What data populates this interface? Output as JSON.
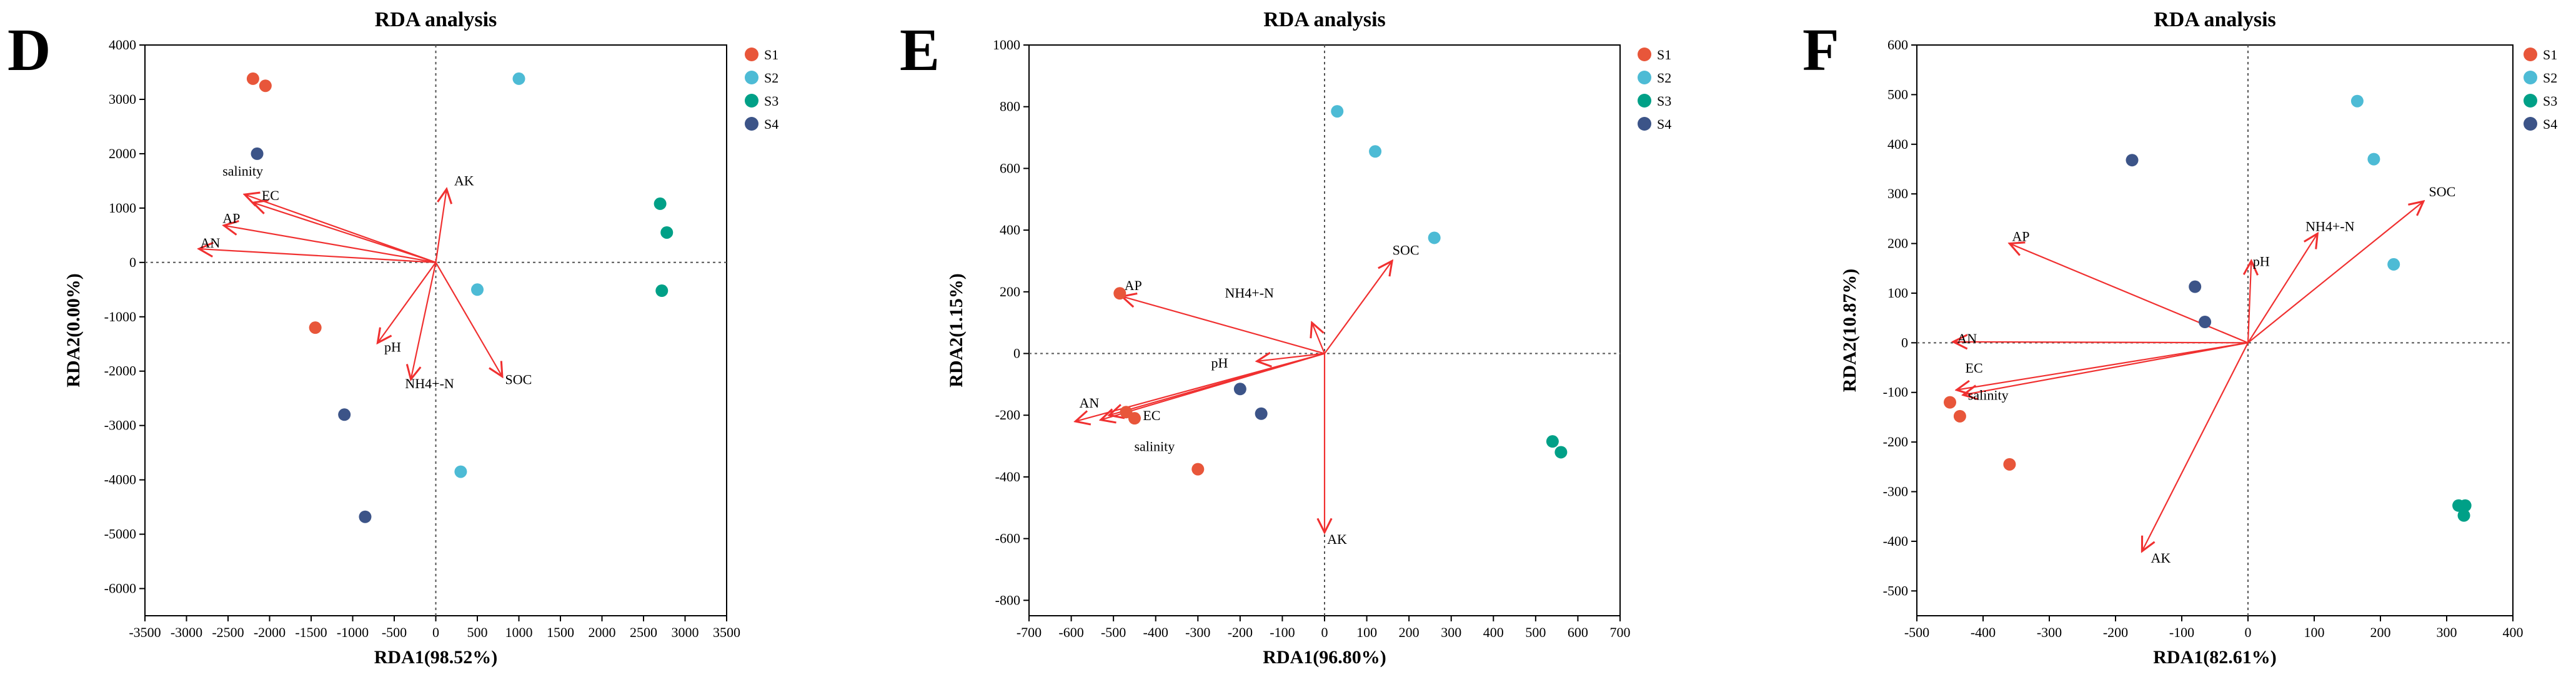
{
  "chart_data": [
    {
      "type": "scatter",
      "panel": "D",
      "title": "RDA analysis",
      "xlabel": "RDA1(98.52%)",
      "ylabel": "RDA2(0.00%)",
      "xlim": [
        -3500,
        3500
      ],
      "ylim": [
        -6500,
        4000
      ],
      "xticks": [
        -3500,
        -3000,
        -2500,
        -2000,
        -1500,
        -1000,
        -500,
        0,
        500,
        1000,
        1500,
        2000,
        2500,
        3000,
        3500
      ],
      "yticks": [
        -6000,
        -5000,
        -4000,
        -3000,
        -2000,
        -1000,
        0,
        1000,
        2000,
        3000,
        4000
      ],
      "legend": [
        "S1",
        "S2",
        "S3",
        "S4"
      ],
      "series": [
        {
          "name": "S1",
          "color": "#E8563A",
          "points": [
            [
              -2200,
              3380
            ],
            [
              -2050,
              3250
            ],
            [
              -1450,
              -1200
            ]
          ]
        },
        {
          "name": "S2",
          "color": "#4DBBD5",
          "points": [
            [
              1000,
              3380
            ],
            [
              500,
              -500
            ],
            [
              300,
              -3850
            ]
          ]
        },
        {
          "name": "S3",
          "color": "#00A087",
          "points": [
            [
              2700,
              1080
            ],
            [
              2780,
              550
            ],
            [
              2720,
              -520
            ]
          ]
        },
        {
          "name": "S4",
          "color": "#3C5488",
          "points": [
            [
              -2150,
              2000
            ],
            [
              -1100,
              -2800
            ],
            [
              -850,
              -4680
            ]
          ]
        }
      ],
      "arrows": [
        {
          "label": "salinity",
          "x": -2300,
          "y": 1250
        },
        {
          "label": "EC",
          "x": -2200,
          "y": 1100
        },
        {
          "label": "AP",
          "x": -2550,
          "y": 680
        },
        {
          "label": "AN",
          "x": -2850,
          "y": 250
        },
        {
          "label": "AK",
          "x": 130,
          "y": 1350
        },
        {
          "label": "pH",
          "x": -700,
          "y": -1480
        },
        {
          "label": "NH4+-N",
          "x": -300,
          "y": -2150
        },
        {
          "label": "SOC",
          "x": 800,
          "y": -2100
        }
      ]
    },
    {
      "type": "scatter",
      "panel": "E",
      "title": "RDA analysis",
      "xlabel": "RDA1(96.80%)",
      "ylabel": "RDA2(1.15%)",
      "xlim": [
        -700,
        700
      ],
      "ylim": [
        -850,
        1000
      ],
      "xticks": [
        -700,
        -600,
        -500,
        -400,
        -300,
        -200,
        -100,
        0,
        100,
        200,
        300,
        400,
        500,
        600,
        700
      ],
      "yticks": [
        -800,
        -600,
        -400,
        -200,
        0,
        200,
        400,
        600,
        800,
        1000
      ],
      "legend": [
        "S1",
        "S2",
        "S3",
        "S4"
      ],
      "series": [
        {
          "name": "S1",
          "color": "#E8563A",
          "points": [
            [
              -485,
              195
            ],
            [
              -470,
              -190
            ],
            [
              -450,
              -210
            ],
            [
              -300,
              -375
            ]
          ]
        },
        {
          "name": "S2",
          "color": "#4DBBD5",
          "points": [
            [
              30,
              785
            ],
            [
              120,
              655
            ],
            [
              260,
              375
            ]
          ]
        },
        {
          "name": "S3",
          "color": "#00A087",
          "points": [
            [
              540,
              -285
            ],
            [
              560,
              -320
            ]
          ]
        },
        {
          "name": "S4",
          "color": "#3C5488",
          "points": [
            [
              -200,
              -115
            ],
            [
              -150,
              -195
            ]
          ]
        }
      ],
      "arrows": [
        {
          "label": "AP",
          "x": -480,
          "y": 185
        },
        {
          "label": "NH4+-N",
          "x": -30,
          "y": 100
        },
        {
          "label": "pH",
          "x": -160,
          "y": -25
        },
        {
          "label": "AN",
          "x": -590,
          "y": -220
        },
        {
          "label": "EC",
          "x": -510,
          "y": -200
        },
        {
          "label": "salinity",
          "x": -530,
          "y": -215
        },
        {
          "label": "SOC",
          "x": 160,
          "y": 300
        },
        {
          "label": "AK",
          "x": 0,
          "y": -580
        }
      ]
    },
    {
      "type": "scatter",
      "panel": "F",
      "title": "RDA analysis",
      "xlabel": "RDA1(82.61%)",
      "ylabel": "RDA2(10.87%)",
      "xlim": [
        -500,
        400
      ],
      "ylim": [
        -550,
        600
      ],
      "xticks": [
        -500,
        -400,
        -300,
        -200,
        -100,
        0,
        100,
        200,
        300,
        400
      ],
      "yticks": [
        -500,
        -400,
        -300,
        -200,
        -100,
        0,
        100,
        200,
        300,
        400,
        500,
        600
      ],
      "legend": [
        "S1",
        "S2",
        "S3",
        "S4"
      ],
      "series": [
        {
          "name": "S1",
          "color": "#E8563A",
          "points": [
            [
              -450,
              -120
            ],
            [
              -435,
              -148
            ],
            [
              -360,
              -245
            ]
          ]
        },
        {
          "name": "S2",
          "color": "#4DBBD5",
          "points": [
            [
              165,
              487
            ],
            [
              190,
              370
            ],
            [
              220,
              158
            ]
          ]
        },
        {
          "name": "S3",
          "color": "#00A087",
          "points": [
            [
              318,
              -328
            ],
            [
              328,
              -328
            ],
            [
              326,
              -348
            ]
          ]
        },
        {
          "name": "S4",
          "color": "#3C5488",
          "points": [
            [
              -175,
              368
            ],
            [
              -80,
              113
            ],
            [
              -65,
              42
            ]
          ]
        }
      ],
      "arrows": [
        {
          "label": "AP",
          "x": -360,
          "y": 200
        },
        {
          "label": "AN",
          "x": -445,
          "y": 2
        },
        {
          "label": "EC",
          "x": -440,
          "y": -95
        },
        {
          "label": "salinity",
          "x": -430,
          "y": -105
        },
        {
          "label": "pH",
          "x": 5,
          "y": 165
        },
        {
          "label": "NH4+-N",
          "x": 105,
          "y": 220
        },
        {
          "label": "SOC",
          "x": 265,
          "y": 285
        },
        {
          "label": "AK",
          "x": -160,
          "y": -420
        }
      ]
    }
  ]
}
